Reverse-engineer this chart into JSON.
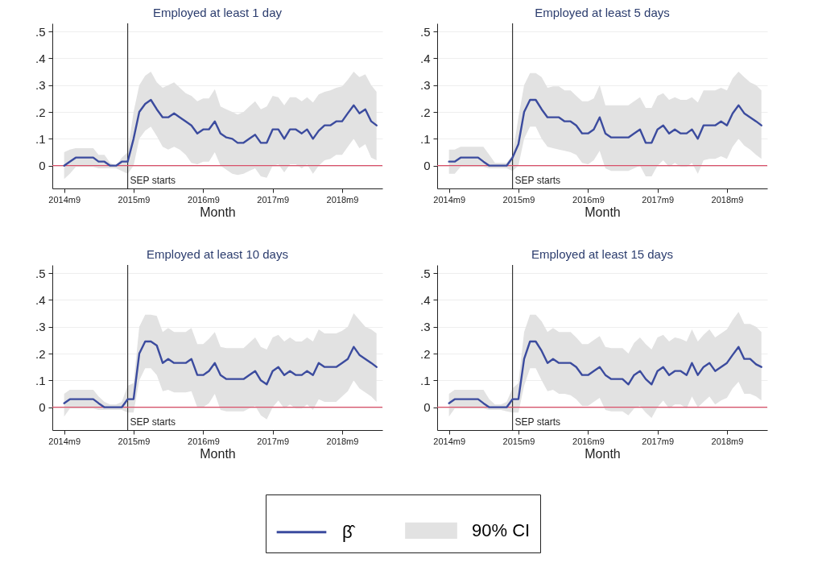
{
  "chart_data": [
    {
      "type": "line",
      "title": "Employed at least 1 day",
      "xlabel": "Month",
      "x": [
        "2014-09",
        "2014-10",
        "2014-11",
        "2014-12",
        "2015-01",
        "2015-02",
        "2015-03",
        "2015-04",
        "2015-05",
        "2015-06",
        "2015-07",
        "2015-08",
        "2015-09",
        "2015-10",
        "2015-11",
        "2015-12",
        "2016-01",
        "2016-02",
        "2016-03",
        "2016-04",
        "2016-05",
        "2016-06",
        "2016-07",
        "2016-08",
        "2016-09",
        "2016-10",
        "2016-11",
        "2016-12",
        "2017-01",
        "2017-02",
        "2017-03",
        "2017-04",
        "2017-05",
        "2017-06",
        "2017-07",
        "2017-08",
        "2017-09",
        "2017-10",
        "2017-11",
        "2017-12",
        "2018-01",
        "2018-02",
        "2018-03",
        "2018-04",
        "2018-05",
        "2018-06",
        "2018-07",
        "2018-08",
        "2018-09",
        "2018-10",
        "2018-11",
        "2018-12",
        "2019-01",
        "2019-02",
        "2019-03"
      ],
      "series": [
        {
          "color": "#3b4b9e",
          "values": [
            0,
            0.015,
            0.03,
            0.03,
            0.03,
            0.03,
            0.015,
            0.015,
            0,
            0,
            0.015,
            0.015,
            0.1,
            0.2,
            0.23,
            0.245,
            0.21,
            0.18,
            0.18,
            0.195,
            0.18,
            0.165,
            0.15,
            0.12,
            0.135,
            0.135,
            0.165,
            0.12,
            0.105,
            0.1,
            0.085,
            0.085,
            0.1,
            0.115,
            0.085,
            0.085,
            0.135,
            0.135,
            0.1,
            0.135,
            0.135,
            0.12,
            0.135,
            0.1,
            0.13,
            0.15,
            0.15,
            0.165,
            0.165,
            0.195,
            0.225,
            0.195,
            0.21,
            0.165,
            0.15
          ],
          "lower": [
            -0.05,
            -0.03,
            -0.005,
            -0.005,
            -0.005,
            -0.005,
            -0.01,
            -0.01,
            -0.01,
            -0.01,
            -0.02,
            -0.03,
            0,
            0.1,
            0.13,
            0.145,
            0.11,
            0.07,
            0.06,
            0.07,
            0.06,
            0.04,
            0.01,
            0.005,
            0.015,
            0.015,
            0.05,
            0,
            -0.015,
            -0.03,
            -0.035,
            -0.03,
            -0.02,
            -0.01,
            -0.04,
            -0.045,
            0,
            0.005,
            -0.025,
            0.005,
            0.005,
            -0.01,
            0.005,
            -0.03,
            0,
            0.02,
            0.025,
            0.04,
            0.04,
            0.07,
            0.1,
            0.065,
            0.08,
            0.03,
            0.02
          ],
          "upper": [
            0.05,
            0.06,
            0.065,
            0.065,
            0.065,
            0.065,
            0.04,
            0.04,
            0.01,
            0,
            0.03,
            0.05,
            0.2,
            0.3,
            0.335,
            0.35,
            0.31,
            0.29,
            0.3,
            0.31,
            0.29,
            0.27,
            0.26,
            0.24,
            0.25,
            0.25,
            0.285,
            0.22,
            0.21,
            0.2,
            0.19,
            0.2,
            0.22,
            0.24,
            0.21,
            0.22,
            0.26,
            0.255,
            0.225,
            0.255,
            0.255,
            0.24,
            0.255,
            0.235,
            0.265,
            0.275,
            0.28,
            0.29,
            0.295,
            0.32,
            0.35,
            0.33,
            0.34,
            0.3,
            0.275
          ]
        }
      ],
      "xlim": [
        "2014-07",
        "2019-04"
      ],
      "ylim": [
        -0.085,
        0.53
      ],
      "xticks": [
        {
          "value": "2014-09",
          "label": "2014m9"
        },
        {
          "value": "2015-09",
          "label": "2015m9"
        },
        {
          "value": "2016-09",
          "label": "2016m9"
        },
        {
          "value": "2017-09",
          "label": "2017m9"
        },
        {
          "value": "2018-09",
          "label": "2018m9"
        }
      ],
      "yticks": [
        {
          "value": 0,
          "label": "0"
        },
        {
          "value": 0.1,
          "label": ".1"
        },
        {
          "value": 0.2,
          "label": ".2"
        },
        {
          "value": 0.3,
          "label": ".3"
        },
        {
          "value": 0.4,
          "label": ".4"
        },
        {
          "value": 0.5,
          "label": ".5"
        }
      ],
      "ref_lines": [
        {
          "axis": "x",
          "value": "2015-08",
          "label": "SEP starts",
          "color": "#333333"
        },
        {
          "axis": "y",
          "value": 0,
          "color": "#d9506a"
        }
      ],
      "grid": "y"
    },
    {
      "type": "line",
      "title": "Employed at least 5 days",
      "xlabel": "Month",
      "x": [
        "2014-09",
        "2014-10",
        "2014-11",
        "2014-12",
        "2015-01",
        "2015-02",
        "2015-03",
        "2015-04",
        "2015-05",
        "2015-06",
        "2015-07",
        "2015-08",
        "2015-09",
        "2015-10",
        "2015-11",
        "2015-12",
        "2016-01",
        "2016-02",
        "2016-03",
        "2016-04",
        "2016-05",
        "2016-06",
        "2016-07",
        "2016-08",
        "2016-09",
        "2016-10",
        "2016-11",
        "2016-12",
        "2017-01",
        "2017-02",
        "2017-03",
        "2017-04",
        "2017-05",
        "2017-06",
        "2017-07",
        "2017-08",
        "2017-09",
        "2017-10",
        "2017-11",
        "2017-12",
        "2018-01",
        "2018-02",
        "2018-03",
        "2018-04",
        "2018-05",
        "2018-06",
        "2018-07",
        "2018-08",
        "2018-09",
        "2018-10",
        "2018-11",
        "2018-12",
        "2019-01",
        "2019-02",
        "2019-03"
      ],
      "series": [
        {
          "color": "#3b4b9e",
          "values": [
            0.015,
            0.015,
            0.03,
            0.03,
            0.03,
            0.03,
            0.015,
            0,
            0,
            0,
            0,
            0.03,
            0.08,
            0.2,
            0.245,
            0.245,
            0.21,
            0.18,
            0.18,
            0.18,
            0.165,
            0.165,
            0.15,
            0.12,
            0.12,
            0.135,
            0.18,
            0.12,
            0.105,
            0.105,
            0.105,
            0.105,
            0.12,
            0.135,
            0.085,
            0.085,
            0.135,
            0.15,
            0.12,
            0.135,
            0.12,
            0.12,
            0.135,
            0.1,
            0.15,
            0.15,
            0.15,
            0.165,
            0.15,
            0.195,
            0.225,
            0.195,
            0.18,
            0.165,
            0.15
          ],
          "lower": [
            -0.03,
            -0.03,
            -0.005,
            -0.005,
            -0.005,
            -0.005,
            -0.005,
            -0.01,
            -0.01,
            -0.01,
            -0.01,
            -0.02,
            0,
            0.1,
            0.145,
            0.145,
            0.1,
            0.07,
            0.065,
            0.06,
            0.055,
            0.05,
            0.04,
            0.01,
            0.005,
            0.02,
            0.055,
            -0.01,
            -0.02,
            -0.02,
            -0.02,
            -0.02,
            -0.01,
            0,
            -0.04,
            -0.04,
            0,
            0.02,
            -0.005,
            0.01,
            -0.005,
            -0.005,
            0.01,
            -0.03,
            0.02,
            0.025,
            0.025,
            0.035,
            0.025,
            0.07,
            0.1,
            0.075,
            0.06,
            0.04,
            0.025
          ],
          "upper": [
            0.06,
            0.06,
            0.07,
            0.07,
            0.07,
            0.07,
            0.07,
            0.04,
            0.01,
            0.01,
            0.01,
            0.04,
            0.18,
            0.3,
            0.345,
            0.345,
            0.33,
            0.29,
            0.295,
            0.295,
            0.28,
            0.28,
            0.26,
            0.24,
            0.24,
            0.25,
            0.3,
            0.225,
            0.225,
            0.225,
            0.225,
            0.225,
            0.24,
            0.255,
            0.215,
            0.215,
            0.26,
            0.27,
            0.245,
            0.255,
            0.245,
            0.245,
            0.255,
            0.235,
            0.28,
            0.28,
            0.28,
            0.29,
            0.28,
            0.325,
            0.35,
            0.33,
            0.31,
            0.3,
            0.28
          ]
        }
      ],
      "xlim": [
        "2014-07",
        "2019-04"
      ],
      "ylim": [
        -0.085,
        0.53
      ],
      "xticks": [
        {
          "value": "2014-09",
          "label": "2014m9"
        },
        {
          "value": "2015-09",
          "label": "2015m9"
        },
        {
          "value": "2016-09",
          "label": "2016m9"
        },
        {
          "value": "2017-09",
          "label": "2017m9"
        },
        {
          "value": "2018-09",
          "label": "2018m9"
        }
      ],
      "yticks": [
        {
          "value": 0,
          "label": "0"
        },
        {
          "value": 0.1,
          "label": ".1"
        },
        {
          "value": 0.2,
          "label": ".2"
        },
        {
          "value": 0.3,
          "label": ".3"
        },
        {
          "value": 0.4,
          "label": ".4"
        },
        {
          "value": 0.5,
          "label": ".5"
        }
      ],
      "ref_lines": [
        {
          "axis": "x",
          "value": "2015-08",
          "label": "SEP starts",
          "color": "#333333"
        },
        {
          "axis": "y",
          "value": 0,
          "color": "#d9506a"
        }
      ],
      "grid": "y"
    },
    {
      "type": "line",
      "title": "Employed at least 10 days",
      "xlabel": "Month",
      "x": [
        "2014-09",
        "2014-10",
        "2014-11",
        "2014-12",
        "2015-01",
        "2015-02",
        "2015-03",
        "2015-04",
        "2015-05",
        "2015-06",
        "2015-07",
        "2015-08",
        "2015-09",
        "2015-10",
        "2015-11",
        "2015-12",
        "2016-01",
        "2016-02",
        "2016-03",
        "2016-04",
        "2016-05",
        "2016-06",
        "2016-07",
        "2016-08",
        "2016-09",
        "2016-10",
        "2016-11",
        "2016-12",
        "2017-01",
        "2017-02",
        "2017-03",
        "2017-04",
        "2017-05",
        "2017-06",
        "2017-07",
        "2017-08",
        "2017-09",
        "2017-10",
        "2017-11",
        "2017-12",
        "2018-01",
        "2018-02",
        "2018-03",
        "2018-04",
        "2018-05",
        "2018-06",
        "2018-07",
        "2018-08",
        "2018-09",
        "2018-10",
        "2018-11",
        "2018-12",
        "2019-01",
        "2019-02",
        "2019-03"
      ],
      "series": [
        {
          "color": "#3b4b9e",
          "values": [
            0.015,
            0.03,
            0.03,
            0.03,
            0.03,
            0.03,
            0.015,
            0,
            0,
            0,
            0,
            0.03,
            0.03,
            0.2,
            0.245,
            0.245,
            0.23,
            0.165,
            0.18,
            0.165,
            0.165,
            0.165,
            0.18,
            0.12,
            0.12,
            0.135,
            0.165,
            0.12,
            0.105,
            0.105,
            0.105,
            0.105,
            0.12,
            0.135,
            0.1,
            0.085,
            0.135,
            0.15,
            0.12,
            0.135,
            0.12,
            0.12,
            0.135,
            0.12,
            0.165,
            0.15,
            0.15,
            0.15,
            0.165,
            0.18,
            0.225,
            0.195,
            0.18,
            0.165,
            0.15
          ],
          "lower": [
            -0.035,
            -0.005,
            -0.005,
            -0.005,
            -0.005,
            -0.005,
            -0.01,
            -0.01,
            -0.01,
            -0.01,
            -0.01,
            -0.02,
            -0.02,
            0.1,
            0.145,
            0.145,
            0.12,
            0.06,
            0.065,
            0.055,
            0.055,
            0.055,
            0.06,
            0,
            0,
            0.015,
            0.05,
            -0.01,
            -0.015,
            -0.015,
            -0.015,
            -0.015,
            -0.005,
            0.005,
            -0.03,
            -0.045,
            0,
            0.025,
            -0.005,
            0.01,
            -0.005,
            -0.005,
            0.01,
            -0.01,
            0.03,
            0.02,
            0.02,
            0.02,
            0.04,
            0.06,
            0.1,
            0.07,
            0.055,
            0.04,
            0.02
          ],
          "upper": [
            0.05,
            0.065,
            0.065,
            0.065,
            0.065,
            0.065,
            0.04,
            0.02,
            0.01,
            0.01,
            0.02,
            0.08,
            0.09,
            0.3,
            0.345,
            0.345,
            0.34,
            0.28,
            0.295,
            0.28,
            0.28,
            0.28,
            0.295,
            0.235,
            0.235,
            0.255,
            0.28,
            0.225,
            0.22,
            0.22,
            0.22,
            0.22,
            0.24,
            0.26,
            0.225,
            0.215,
            0.26,
            0.27,
            0.245,
            0.26,
            0.245,
            0.245,
            0.26,
            0.245,
            0.29,
            0.275,
            0.275,
            0.275,
            0.285,
            0.3,
            0.35,
            0.325,
            0.3,
            0.29,
            0.275
          ]
        }
      ],
      "xlim": [
        "2014-07",
        "2019-04"
      ],
      "ylim": [
        -0.085,
        0.53
      ],
      "xticks": [
        {
          "value": "2014-09",
          "label": "2014m9"
        },
        {
          "value": "2015-09",
          "label": "2015m9"
        },
        {
          "value": "2016-09",
          "label": "2016m9"
        },
        {
          "value": "2017-09",
          "label": "2017m9"
        },
        {
          "value": "2018-09",
          "label": "2018m9"
        }
      ],
      "yticks": [
        {
          "value": 0,
          "label": "0"
        },
        {
          "value": 0.1,
          "label": ".1"
        },
        {
          "value": 0.2,
          "label": ".2"
        },
        {
          "value": 0.3,
          "label": ".3"
        },
        {
          "value": 0.4,
          "label": ".4"
        },
        {
          "value": 0.5,
          "label": ".5"
        }
      ],
      "ref_lines": [
        {
          "axis": "x",
          "value": "2015-08",
          "label": "SEP starts",
          "color": "#333333"
        },
        {
          "axis": "y",
          "value": 0,
          "color": "#d9506a"
        }
      ],
      "grid": "y"
    },
    {
      "type": "line",
      "title": "Employed at least 15 days",
      "xlabel": "Month",
      "x": [
        "2014-09",
        "2014-10",
        "2014-11",
        "2014-12",
        "2015-01",
        "2015-02",
        "2015-03",
        "2015-04",
        "2015-05",
        "2015-06",
        "2015-07",
        "2015-08",
        "2015-09",
        "2015-10",
        "2015-11",
        "2015-12",
        "2016-01",
        "2016-02",
        "2016-03",
        "2016-04",
        "2016-05",
        "2016-06",
        "2016-07",
        "2016-08",
        "2016-09",
        "2016-10",
        "2016-11",
        "2016-12",
        "2017-01",
        "2017-02",
        "2017-03",
        "2017-04",
        "2017-05",
        "2017-06",
        "2017-07",
        "2017-08",
        "2017-09",
        "2017-10",
        "2017-11",
        "2017-12",
        "2018-01",
        "2018-02",
        "2018-03",
        "2018-04",
        "2018-05",
        "2018-06",
        "2018-07",
        "2018-08",
        "2018-09",
        "2018-10",
        "2018-11",
        "2018-12",
        "2019-01",
        "2019-02",
        "2019-03"
      ],
      "series": [
        {
          "name": "β̂",
          "color": "#3b4b9e",
          "values": [
            0.015,
            0.03,
            0.03,
            0.03,
            0.03,
            0.03,
            0.015,
            0,
            0,
            0,
            0,
            0.03,
            0.03,
            0.18,
            0.245,
            0.245,
            0.21,
            0.165,
            0.18,
            0.165,
            0.165,
            0.165,
            0.15,
            0.12,
            0.12,
            0.135,
            0.15,
            0.12,
            0.105,
            0.105,
            0.105,
            0.085,
            0.12,
            0.135,
            0.105,
            0.085,
            0.135,
            0.15,
            0.12,
            0.135,
            0.135,
            0.12,
            0.165,
            0.12,
            0.15,
            0.165,
            0.135,
            0.15,
            0.165,
            0.195,
            0.225,
            0.18,
            0.18,
            0.16,
            0.15
          ],
          "lower": [
            -0.035,
            -0.005,
            -0.005,
            -0.005,
            -0.005,
            -0.005,
            -0.005,
            -0.01,
            -0.01,
            -0.01,
            -0.015,
            -0.02,
            -0.02,
            0.08,
            0.145,
            0.145,
            0.1,
            0.06,
            0.065,
            0.05,
            0.05,
            0.045,
            0.03,
            0.005,
            0.005,
            0.02,
            0.035,
            -0.01,
            -0.015,
            -0.015,
            -0.015,
            -0.03,
            -0.005,
            0.005,
            -0.02,
            -0.04,
            0,
            0.025,
            -0.005,
            0.01,
            0.01,
            -0.005,
            0.04,
            0,
            0.02,
            0.04,
            0.01,
            0.025,
            0.035,
            0.07,
            0.095,
            0.05,
            0.05,
            0.04,
            0.025
          ],
          "upper": [
            0.05,
            0.065,
            0.065,
            0.065,
            0.065,
            0.065,
            0.065,
            0.03,
            0.01,
            0.01,
            0.02,
            0.07,
            0.09,
            0.28,
            0.345,
            0.345,
            0.32,
            0.28,
            0.295,
            0.28,
            0.28,
            0.28,
            0.26,
            0.235,
            0.235,
            0.25,
            0.265,
            0.225,
            0.22,
            0.22,
            0.22,
            0.2,
            0.24,
            0.26,
            0.235,
            0.215,
            0.26,
            0.27,
            0.245,
            0.26,
            0.255,
            0.245,
            0.29,
            0.245,
            0.27,
            0.29,
            0.26,
            0.275,
            0.29,
            0.325,
            0.355,
            0.31,
            0.31,
            0.3,
            0.28
          ]
        }
      ],
      "xlim": [
        "2014-07",
        "2019-04"
      ],
      "ylim": [
        -0.085,
        0.53
      ],
      "xticks": [
        {
          "value": "2014-09",
          "label": "2014m9"
        },
        {
          "value": "2015-09",
          "label": "2015m9"
        },
        {
          "value": "2016-09",
          "label": "2016m9"
        },
        {
          "value": "2017-09",
          "label": "2017m9"
        },
        {
          "value": "2018-09",
          "label": "2018m9"
        }
      ],
      "yticks": [
        {
          "value": 0,
          "label": "0"
        },
        {
          "value": 0.1,
          "label": ".1"
        },
        {
          "value": 0.2,
          "label": ".2"
        },
        {
          "value": 0.3,
          "label": ".3"
        },
        {
          "value": 0.4,
          "label": ".4"
        },
        {
          "value": 0.5,
          "label": ".5"
        }
      ],
      "ref_lines": [
        {
          "axis": "x",
          "value": "2015-08",
          "label": "SEP starts",
          "color": "#333333"
        },
        {
          "axis": "y",
          "value": 0,
          "color": "#d9506a"
        }
      ],
      "annotations": [
        "90% CI"
      ],
      "grid": "y",
      "legend": "bottom"
    }
  ]
}
